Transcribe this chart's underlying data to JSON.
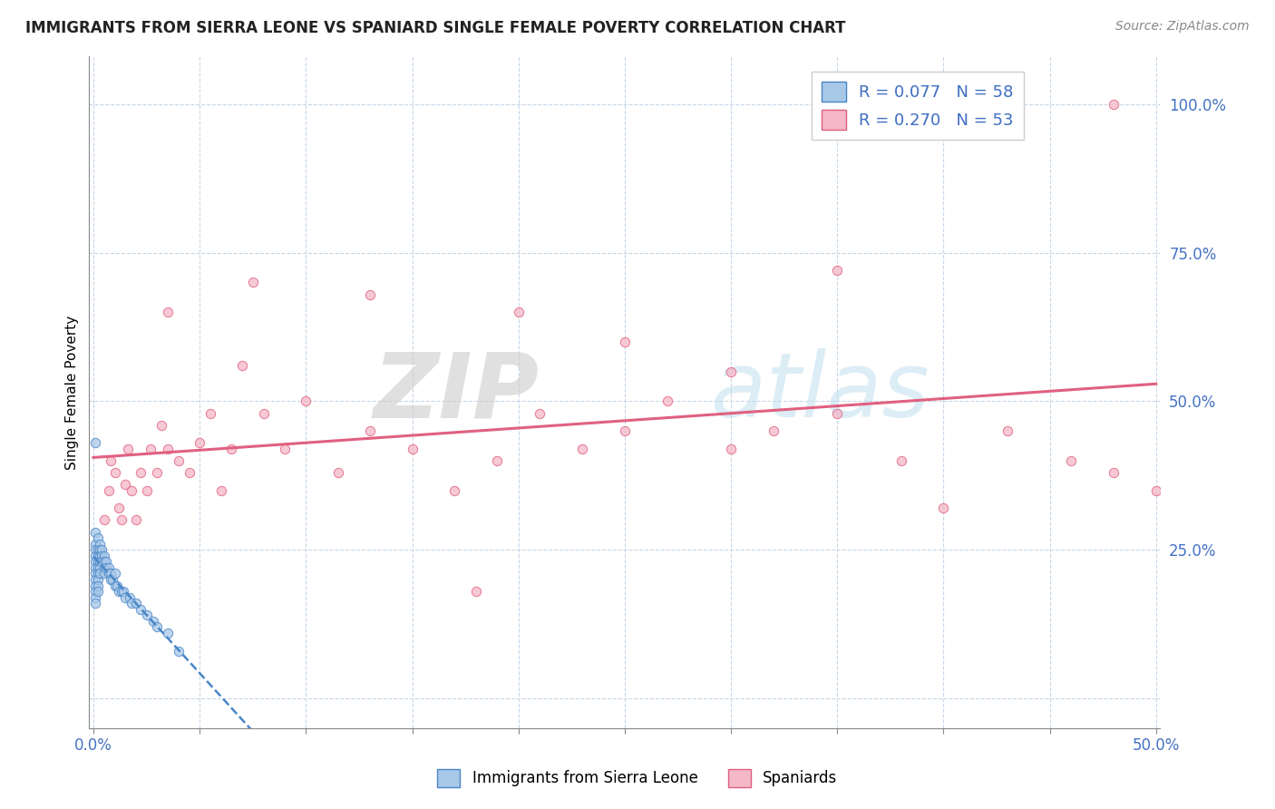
{
  "title": "IMMIGRANTS FROM SIERRA LEONE VS SPANIARD SINGLE FEMALE POVERTY CORRELATION CHART",
  "source": "Source: ZipAtlas.com",
  "ylabel": "Single Female Poverty",
  "R_blue": 0.077,
  "N_blue": 58,
  "R_pink": 0.27,
  "N_pink": 53,
  "blue_color": "#a8c8e8",
  "blue_edge_color": "#4a86c8",
  "pink_color": "#f5b8c8",
  "pink_edge_color": "#e06080",
  "blue_line_color": "#4a86c8",
  "pink_line_color": "#e06080",
  "legend_label_blue": "Immigrants from Sierra Leone",
  "legend_label_pink": "Spaniards",
  "blue_x": [
    0.001,
    0.001,
    0.001,
    0.001,
    0.001,
    0.001,
    0.001,
    0.001,
    0.001,
    0.001,
    0.001,
    0.001,
    0.002,
    0.002,
    0.002,
    0.002,
    0.002,
    0.002,
    0.002,
    0.002,
    0.002,
    0.003,
    0.003,
    0.003,
    0.003,
    0.003,
    0.003,
    0.004,
    0.004,
    0.004,
    0.005,
    0.005,
    0.005,
    0.005,
    0.006,
    0.006,
    0.007,
    0.007,
    0.008,
    0.008,
    0.009,
    0.01,
    0.01,
    0.011,
    0.012,
    0.013,
    0.014,
    0.015,
    0.017,
    0.018,
    0.02,
    0.022,
    0.025,
    0.028,
    0.03,
    0.035,
    0.04,
    0.001
  ],
  "blue_y": [
    0.28,
    0.26,
    0.25,
    0.24,
    0.23,
    0.22,
    0.21,
    0.2,
    0.19,
    0.18,
    0.17,
    0.16,
    0.27,
    0.25,
    0.24,
    0.23,
    0.22,
    0.21,
    0.2,
    0.19,
    0.18,
    0.26,
    0.25,
    0.24,
    0.23,
    0.22,
    0.21,
    0.25,
    0.24,
    0.23,
    0.24,
    0.23,
    0.22,
    0.21,
    0.23,
    0.22,
    0.22,
    0.21,
    0.21,
    0.2,
    0.2,
    0.21,
    0.19,
    0.19,
    0.18,
    0.18,
    0.18,
    0.17,
    0.17,
    0.16,
    0.16,
    0.15,
    0.14,
    0.13,
    0.12,
    0.11,
    0.08,
    0.43
  ],
  "pink_x": [
    0.005,
    0.007,
    0.008,
    0.01,
    0.012,
    0.013,
    0.015,
    0.016,
    0.018,
    0.02,
    0.022,
    0.025,
    0.027,
    0.03,
    0.032,
    0.035,
    0.04,
    0.045,
    0.05,
    0.055,
    0.06,
    0.065,
    0.07,
    0.08,
    0.09,
    0.1,
    0.115,
    0.13,
    0.15,
    0.17,
    0.19,
    0.21,
    0.23,
    0.25,
    0.27,
    0.3,
    0.32,
    0.35,
    0.38,
    0.13,
    0.2,
    0.25,
    0.3,
    0.35,
    0.4,
    0.43,
    0.46,
    0.48,
    0.5,
    0.035,
    0.075,
    0.48,
    0.18
  ],
  "pink_y": [
    0.3,
    0.35,
    0.4,
    0.38,
    0.32,
    0.3,
    0.36,
    0.42,
    0.35,
    0.3,
    0.38,
    0.35,
    0.42,
    0.38,
    0.46,
    0.42,
    0.4,
    0.38,
    0.43,
    0.48,
    0.35,
    0.42,
    0.56,
    0.48,
    0.42,
    0.5,
    0.38,
    0.45,
    0.42,
    0.35,
    0.4,
    0.48,
    0.42,
    0.45,
    0.5,
    0.42,
    0.45,
    0.48,
    0.4,
    0.68,
    0.65,
    0.6,
    0.55,
    0.72,
    0.32,
    0.45,
    0.4,
    0.38,
    0.35,
    0.65,
    0.7,
    1.0,
    0.18
  ],
  "xlim": [
    -0.002,
    0.502
  ],
  "ylim": [
    -0.05,
    1.08
  ],
  "xtick_pos": [
    0.0,
    0.05,
    0.1,
    0.15,
    0.2,
    0.25,
    0.3,
    0.35,
    0.4,
    0.45,
    0.5
  ],
  "ytick_pos": [
    0.0,
    0.25,
    0.5,
    0.75,
    1.0
  ],
  "grid_color": "#c8d8e8",
  "tick_color": "#4472c4"
}
